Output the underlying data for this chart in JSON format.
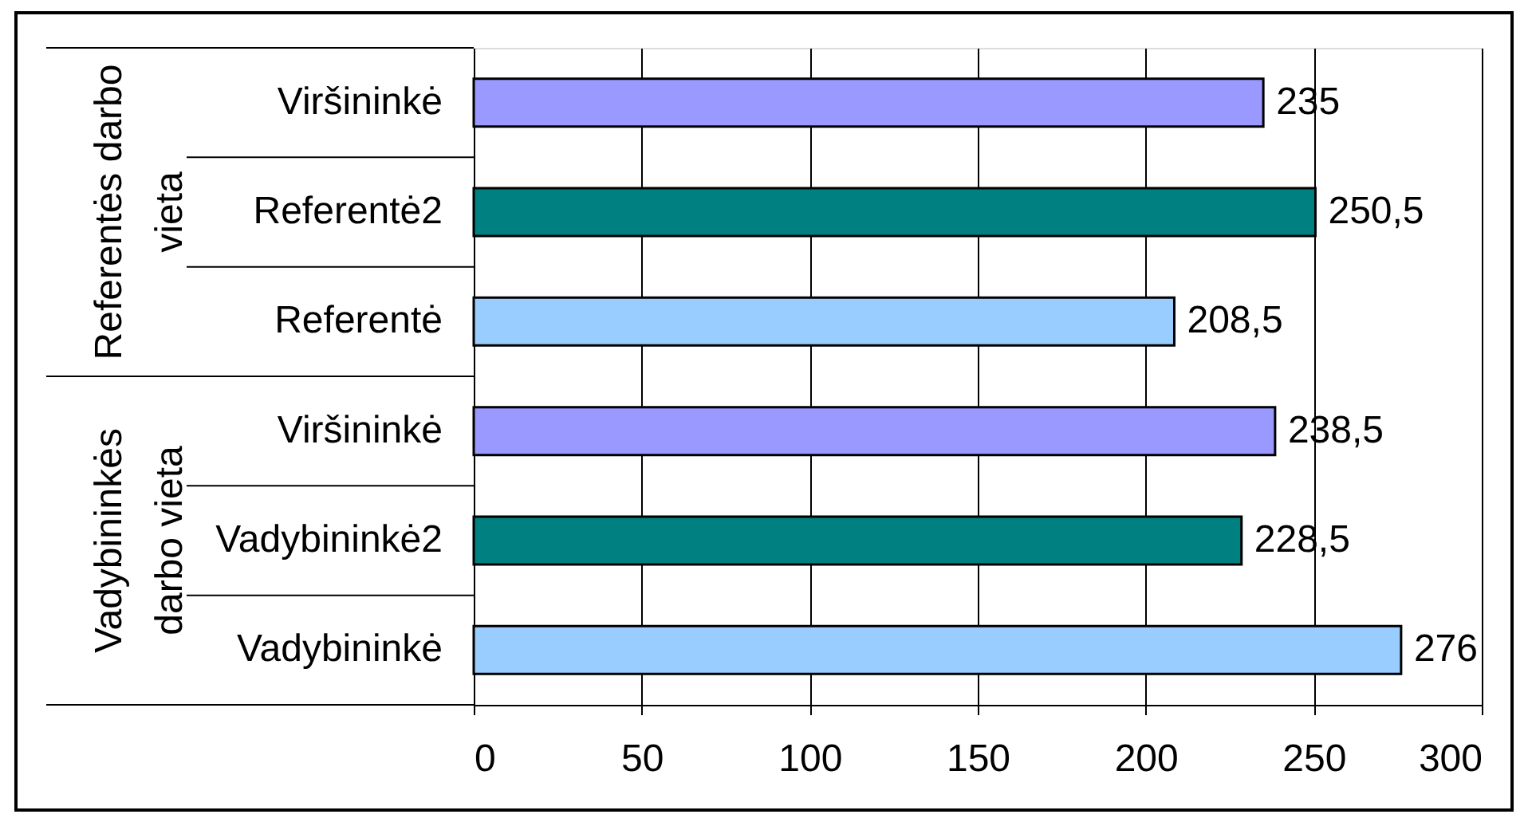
{
  "chart_data": {
    "type": "bar",
    "orientation": "horizontal",
    "categories": [
      "Viršininkė",
      "Referentė2",
      "Referentė",
      "Viršininkė",
      "Vadybininkė2",
      "Vadybininkė"
    ],
    "values": [
      235,
      250.5,
      208.5,
      238.5,
      228.5,
      276
    ],
    "colors": [
      "#9999ff",
      "#008080",
      "#99ccff",
      "#9999ff",
      "#008080",
      "#99ccff"
    ],
    "value_labels": [
      "235",
      "250,5",
      "208,5",
      "238,5",
      "228,5",
      "276"
    ],
    "xlim": [
      0,
      300
    ],
    "xticks": [
      0,
      50,
      100,
      150,
      200,
      250,
      300
    ],
    "grid": "x",
    "annotations": [
      "Referentės darbo vieta",
      "Vadybininkės darbo vieta"
    ]
  }
}
